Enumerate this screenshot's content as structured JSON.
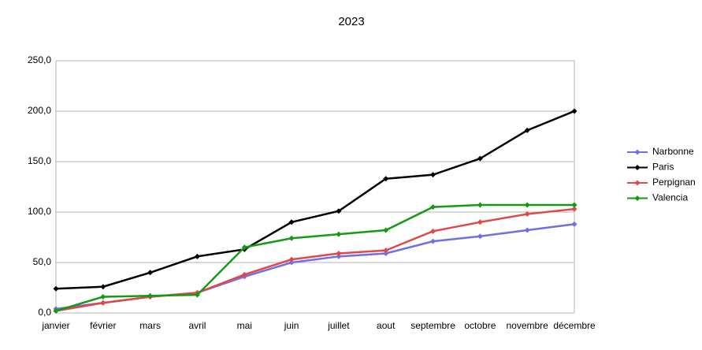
{
  "chart_data": {
    "type": "line",
    "title": "2023",
    "categories": [
      "janvier",
      "février",
      "mars",
      "avril",
      "mai",
      "juin",
      "juillet",
      "aout",
      "septembre",
      "octobre",
      "novembre",
      "décembre"
    ],
    "series": [
      {
        "name": "Narbonne",
        "color": "#6f6fe8",
        "values": [
          4,
          10,
          16,
          20,
          36,
          50,
          56,
          59,
          71,
          76,
          82,
          88
        ]
      },
      {
        "name": "Paris",
        "color": "#000000",
        "values": [
          24,
          26,
          40,
          56,
          63,
          90,
          101,
          133,
          137,
          153,
          181,
          200
        ]
      },
      {
        "name": "Perpignan",
        "color": "#e04848",
        "values": [
          2,
          10,
          16,
          20,
          38,
          53,
          59,
          62,
          81,
          90,
          98,
          103
        ]
      },
      {
        "name": "Valencia",
        "color": "#159a15",
        "values": [
          2,
          16,
          17,
          18,
          65,
          74,
          78,
          82,
          105,
          107,
          107,
          107
        ]
      }
    ],
    "ylim": [
      0,
      250
    ],
    "yticks": [
      {
        "value": 0,
        "label": "0,0"
      },
      {
        "value": 50,
        "label": "50,0"
      },
      {
        "value": 100,
        "label": "100,0"
      },
      {
        "value": 150,
        "label": "150,0"
      },
      {
        "value": 200,
        "label": "200,0"
      },
      {
        "value": 250,
        "label": "250,0"
      }
    ],
    "grid": true,
    "legend": "right"
  }
}
